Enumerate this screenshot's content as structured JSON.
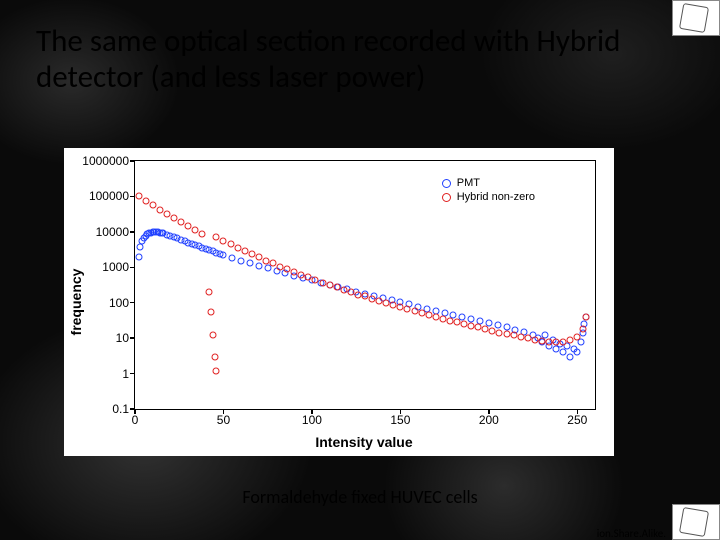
{
  "title": "The same optical section recorded with Hybrid detector (and less laser power)",
  "caption": "Formaldehyde fixed HUVEC cells",
  "license_fragment": "ion.Share.Alike.",
  "chart": {
    "type": "scatter",
    "background_color": "#ffffff",
    "xlabel": "Intensity value",
    "ylabel": "frequency",
    "xlim": [
      0,
      260
    ],
    "ylim": [
      0.1,
      1000000
    ],
    "yscale": "log",
    "xticks": [
      0,
      50,
      100,
      150,
      200,
      250
    ],
    "yticks": [
      0.1,
      1,
      10,
      100,
      1000,
      10000,
      100000,
      1000000
    ],
    "ytick_labels": [
      "0.1",
      "1",
      "10",
      "100",
      "1000",
      "10000",
      "100000",
      "1000000"
    ],
    "axis_color": "#000000",
    "label_fontsize": 14,
    "tick_fontsize": 12,
    "marker_size": 5,
    "legend": {
      "position": "upper-right",
      "items": [
        {
          "label": "PMT",
          "color": "#2040ff"
        },
        {
          "label": "Hybrid non-zero",
          "color": "#e02020"
        }
      ]
    },
    "series": [
      {
        "name": "PMT",
        "color": "#2040ff",
        "marker": "circle-open",
        "data": [
          [
            2,
            2000
          ],
          [
            3,
            3800
          ],
          [
            4,
            5400
          ],
          [
            5,
            6800
          ],
          [
            6,
            7800
          ],
          [
            7,
            8600
          ],
          [
            8,
            9100
          ],
          [
            9,
            9500
          ],
          [
            10,
            9700
          ],
          [
            11,
            9800
          ],
          [
            12,
            9800
          ],
          [
            13,
            9700
          ],
          [
            14,
            9500
          ],
          [
            15,
            9200
          ],
          [
            16,
            9000
          ],
          [
            18,
            8400
          ],
          [
            20,
            7800
          ],
          [
            22,
            7200
          ],
          [
            24,
            6600
          ],
          [
            26,
            6000
          ],
          [
            28,
            5500
          ],
          [
            30,
            5000
          ],
          [
            32,
            4600
          ],
          [
            34,
            4200
          ],
          [
            36,
            3900
          ],
          [
            38,
            3600
          ],
          [
            40,
            3300
          ],
          [
            42,
            3050
          ],
          [
            44,
            2800
          ],
          [
            46,
            2600
          ],
          [
            48,
            2400
          ],
          [
            50,
            2200
          ],
          [
            55,
            1850
          ],
          [
            60,
            1550
          ],
          [
            65,
            1300
          ],
          [
            70,
            1100
          ],
          [
            75,
            940
          ],
          [
            80,
            800
          ],
          [
            85,
            680
          ],
          [
            90,
            580
          ],
          [
            95,
            500
          ],
          [
            100,
            430
          ],
          [
            105,
            370
          ],
          [
            110,
            320
          ],
          [
            115,
            275
          ],
          [
            120,
            240
          ],
          [
            125,
            205
          ],
          [
            130,
            180
          ],
          [
            135,
            155
          ],
          [
            140,
            135
          ],
          [
            145,
            118
          ],
          [
            150,
            102
          ],
          [
            155,
            90
          ],
          [
            160,
            78
          ],
          [
            165,
            68
          ],
          [
            170,
            60
          ],
          [
            175,
            52
          ],
          [
            180,
            45
          ],
          [
            185,
            40
          ],
          [
            190,
            35
          ],
          [
            195,
            30
          ],
          [
            200,
            26
          ],
          [
            205,
            23
          ],
          [
            210,
            20
          ],
          [
            215,
            17
          ],
          [
            220,
            15
          ],
          [
            225,
            12
          ],
          [
            228,
            10
          ],
          [
            230,
            8
          ],
          [
            232,
            12
          ],
          [
            234,
            6
          ],
          [
            236,
            9
          ],
          [
            238,
            5
          ],
          [
            240,
            7
          ],
          [
            242,
            4
          ],
          [
            244,
            6
          ],
          [
            246,
            3
          ],
          [
            248,
            5
          ],
          [
            250,
            4
          ],
          [
            252,
            8
          ],
          [
            253,
            14
          ],
          [
            254,
            25
          ],
          [
            255,
            40
          ]
        ]
      },
      {
        "name": "Hybrid non-zero",
        "color": "#e02020",
        "marker": "circle-open",
        "data": [
          [
            2,
            100000
          ],
          [
            6,
            74000
          ],
          [
            10,
            56000
          ],
          [
            14,
            42000
          ],
          [
            18,
            32000
          ],
          [
            22,
            24000
          ],
          [
            26,
            18500
          ],
          [
            30,
            14500
          ],
          [
            34,
            11200
          ],
          [
            38,
            8800
          ],
          [
            42,
            200
          ],
          [
            43,
            54
          ],
          [
            44,
            12
          ],
          [
            45,
            3
          ],
          [
            46,
            1.2
          ],
          [
            46,
            7000
          ],
          [
            50,
            5500
          ],
          [
            54,
            4400
          ],
          [
            58,
            3500
          ],
          [
            62,
            2800
          ],
          [
            66,
            2300
          ],
          [
            70,
            1900
          ],
          [
            74,
            1550
          ],
          [
            78,
            1300
          ],
          [
            82,
            1050
          ],
          [
            86,
            880
          ],
          [
            90,
            730
          ],
          [
            94,
            610
          ],
          [
            98,
            520
          ],
          [
            102,
            440
          ],
          [
            106,
            370
          ],
          [
            110,
            320
          ],
          [
            114,
            270
          ],
          [
            118,
            230
          ],
          [
            122,
            200
          ],
          [
            126,
            170
          ],
          [
            130,
            150
          ],
          [
            134,
            128
          ],
          [
            138,
            112
          ],
          [
            142,
            98
          ],
          [
            146,
            85
          ],
          [
            150,
            75
          ],
          [
            154,
            66
          ],
          [
            158,
            58
          ],
          [
            162,
            51
          ],
          [
            166,
            45
          ],
          [
            170,
            40
          ],
          [
            174,
            35
          ],
          [
            178,
            31
          ],
          [
            182,
            28
          ],
          [
            186,
            25
          ],
          [
            190,
            22
          ],
          [
            194,
            20
          ],
          [
            198,
            18
          ],
          [
            202,
            16
          ],
          [
            206,
            14
          ],
          [
            210,
            13
          ],
          [
            214,
            12
          ],
          [
            218,
            11
          ],
          [
            222,
            10
          ],
          [
            226,
            9
          ],
          [
            230,
            8.5
          ],
          [
            234,
            8
          ],
          [
            238,
            8
          ],
          [
            242,
            8
          ],
          [
            246,
            9
          ],
          [
            250,
            11
          ],
          [
            253,
            18
          ],
          [
            255,
            40
          ]
        ]
      }
    ]
  }
}
